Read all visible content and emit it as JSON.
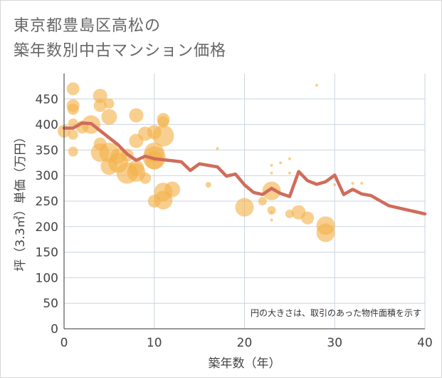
{
  "title_line1": "東京都豊島区高松の",
  "title_line2": "築年数別中古マンション価格",
  "chart_data": {
    "type": "scatter",
    "xlabel": "築年数（年）",
    "ylabel": "坪（3.3㎡）単価（万円）",
    "xlim": [
      0,
      40
    ],
    "ylim": [
      0,
      500
    ],
    "xticks": [
      0,
      10,
      20,
      30,
      40
    ],
    "yticks": [
      0,
      50,
      100,
      150,
      200,
      250,
      300,
      350,
      400,
      450
    ],
    "annotation": "円の大きさは、取引のあった物件面積を示す",
    "colors": {
      "bubble": "#f3b24a",
      "line": "#d06c5b",
      "grid": "#c9d5e0"
    },
    "bubbles": [
      {
        "x": 0,
        "y": 387,
        "s": 9
      },
      {
        "x": 1,
        "y": 470,
        "s": 9
      },
      {
        "x": 1,
        "y": 437,
        "s": 9
      },
      {
        "x": 1,
        "y": 430,
        "s": 8
      },
      {
        "x": 1,
        "y": 402,
        "s": 7
      },
      {
        "x": 1,
        "y": 380,
        "s": 7
      },
      {
        "x": 1,
        "y": 347,
        "s": 7
      },
      {
        "x": 2,
        "y": 395,
        "s": 9
      },
      {
        "x": 3,
        "y": 400,
        "s": 13
      },
      {
        "x": 4,
        "y": 456,
        "s": 10
      },
      {
        "x": 4,
        "y": 437,
        "s": 9
      },
      {
        "x": 4,
        "y": 345,
        "s": 13
      },
      {
        "x": 4,
        "y": 362,
        "s": 9
      },
      {
        "x": 5,
        "y": 441,
        "s": 7
      },
      {
        "x": 5,
        "y": 415,
        "s": 11
      },
      {
        "x": 5,
        "y": 345,
        "s": 14
      },
      {
        "x": 5,
        "y": 318,
        "s": 12
      },
      {
        "x": 6,
        "y": 338,
        "s": 11
      },
      {
        "x": 6,
        "y": 325,
        "s": 14
      },
      {
        "x": 7,
        "y": 305,
        "s": 15
      },
      {
        "x": 7,
        "y": 340,
        "s": 9
      },
      {
        "x": 8,
        "y": 418,
        "s": 10
      },
      {
        "x": 8,
        "y": 368,
        "s": 10
      },
      {
        "x": 8,
        "y": 306,
        "s": 13
      },
      {
        "x": 8,
        "y": 315,
        "s": 11
      },
      {
        "x": 9,
        "y": 295,
        "s": 8
      },
      {
        "x": 9,
        "y": 382,
        "s": 10
      },
      {
        "x": 10,
        "y": 385,
        "s": 10
      },
      {
        "x": 10,
        "y": 345,
        "s": 14
      },
      {
        "x": 10,
        "y": 330,
        "s": 13
      },
      {
        "x": 10,
        "y": 335,
        "s": 16
      },
      {
        "x": 10,
        "y": 250,
        "s": 9
      },
      {
        "x": 11,
        "y": 410,
        "s": 9
      },
      {
        "x": 11,
        "y": 405,
        "s": 8
      },
      {
        "x": 11,
        "y": 378,
        "s": 15
      },
      {
        "x": 11,
        "y": 268,
        "s": 13
      },
      {
        "x": 11,
        "y": 252,
        "s": 13
      },
      {
        "x": 12,
        "y": 273,
        "s": 11
      },
      {
        "x": 16,
        "y": 282,
        "s": 4
      },
      {
        "x": 17,
        "y": 353,
        "s": 2
      },
      {
        "x": 20,
        "y": 238,
        "s": 13
      },
      {
        "x": 22,
        "y": 250,
        "s": 6
      },
      {
        "x": 23,
        "y": 320,
        "s": 2
      },
      {
        "x": 23,
        "y": 305,
        "s": 2
      },
      {
        "x": 23,
        "y": 270,
        "s": 13
      },
      {
        "x": 23,
        "y": 232,
        "s": 6
      },
      {
        "x": 23,
        "y": 228,
        "s": 2
      },
      {
        "x": 23,
        "y": 213,
        "s": 2
      },
      {
        "x": 24,
        "y": 325,
        "s": 2
      },
      {
        "x": 25,
        "y": 333,
        "s": 2
      },
      {
        "x": 25,
        "y": 305,
        "s": 2
      },
      {
        "x": 25,
        "y": 225,
        "s": 6
      },
      {
        "x": 26,
        "y": 228,
        "s": 10
      },
      {
        "x": 27,
        "y": 217,
        "s": 9
      },
      {
        "x": 28,
        "y": 477,
        "s": 2
      },
      {
        "x": 29,
        "y": 202,
        "s": 13
      },
      {
        "x": 29,
        "y": 188,
        "s": 13
      },
      {
        "x": 30,
        "y": 282,
        "s": 2
      },
      {
        "x": 31,
        "y": 262,
        "s": 2
      },
      {
        "x": 32,
        "y": 285,
        "s": 2
      },
      {
        "x": 33,
        "y": 285,
        "s": 2
      }
    ],
    "trend": {
      "x": [
        0,
        1,
        2,
        3,
        4,
        5,
        6,
        7,
        8,
        9,
        10,
        11,
        12,
        13,
        14,
        15,
        16,
        17,
        18,
        19,
        20,
        21,
        22,
        23,
        24,
        25,
        26,
        27,
        28,
        29,
        30,
        31,
        32,
        33,
        34,
        35,
        36,
        37,
        38,
        39,
        40
      ],
      "y": [
        393,
        393,
        403,
        402,
        388,
        374,
        360,
        342,
        330,
        338,
        333,
        331,
        329,
        327,
        310,
        323,
        320,
        317,
        299,
        303,
        282,
        267,
        263,
        275,
        265,
        259,
        308,
        290,
        283,
        288,
        301,
        263,
        273,
        264,
        261,
        251,
        241,
        237,
        233,
        229,
        225
      ]
    }
  }
}
